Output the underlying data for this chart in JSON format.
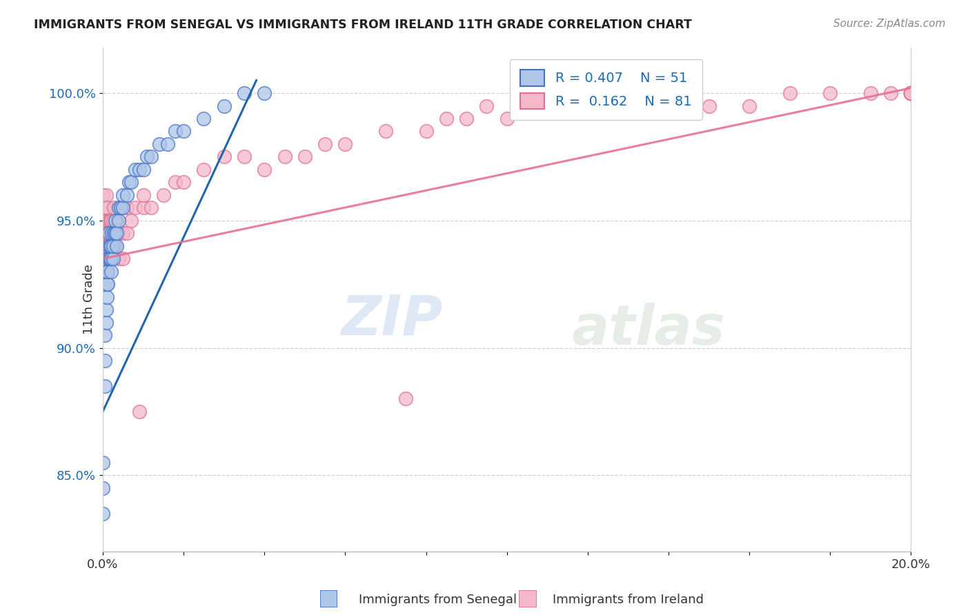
{
  "title": "IMMIGRANTS FROM SENEGAL VS IMMIGRANTS FROM IRELAND 11TH GRADE CORRELATION CHART",
  "source": "Source: ZipAtlas.com",
  "ylabel": "11th Grade",
  "x_min": 0.0,
  "x_max": 20.0,
  "y_min": 82.0,
  "y_max": 101.8,
  "y_ticks": [
    85.0,
    90.0,
    95.0,
    100.0
  ],
  "y_tick_labels": [
    "85.0%",
    "90.0%",
    "95.0%",
    "100.0%"
  ],
  "color_blue": "#aec6e8",
  "color_pink": "#f4b8cb",
  "color_blue_edge": "#4472c4",
  "color_pink_edge": "#e07090",
  "color_blue_line": "#2166ac",
  "color_pink_line": "#e87090",
  "color_title": "#222222",
  "color_source": "#888888",
  "color_legend_text": "#1a6bb5",
  "watermark_zip": "ZIP",
  "watermark_atlas": "atlas",
  "senegal_x": [
    0.0,
    0.0,
    0.0,
    0.05,
    0.05,
    0.05,
    0.08,
    0.08,
    0.1,
    0.1,
    0.1,
    0.12,
    0.12,
    0.12,
    0.15,
    0.15,
    0.15,
    0.18,
    0.18,
    0.2,
    0.2,
    0.2,
    0.22,
    0.25,
    0.25,
    0.28,
    0.3,
    0.3,
    0.35,
    0.35,
    0.4,
    0.4,
    0.45,
    0.5,
    0.5,
    0.6,
    0.65,
    0.7,
    0.8,
    0.9,
    1.0,
    1.1,
    1.2,
    1.4,
    1.6,
    1.8,
    2.0,
    2.5,
    3.0,
    3.5,
    4.0
  ],
  "senegal_y": [
    83.5,
    84.5,
    85.5,
    88.5,
    89.5,
    90.5,
    91.0,
    91.5,
    92.0,
    92.5,
    93.0,
    92.5,
    93.0,
    93.5,
    93.5,
    94.0,
    94.5,
    93.5,
    94.0,
    93.0,
    93.5,
    94.0,
    94.5,
    93.5,
    94.0,
    94.5,
    94.5,
    95.0,
    94.0,
    94.5,
    95.0,
    95.5,
    95.5,
    95.5,
    96.0,
    96.0,
    96.5,
    96.5,
    97.0,
    97.0,
    97.0,
    97.5,
    97.5,
    98.0,
    98.0,
    98.5,
    98.5,
    99.0,
    99.5,
    100.0,
    100.0
  ],
  "ireland_x": [
    0.0,
    0.0,
    0.0,
    0.0,
    0.0,
    0.05,
    0.05,
    0.05,
    0.08,
    0.08,
    0.1,
    0.1,
    0.1,
    0.12,
    0.12,
    0.15,
    0.15,
    0.15,
    0.18,
    0.18,
    0.2,
    0.2,
    0.22,
    0.22,
    0.25,
    0.25,
    0.28,
    0.3,
    0.3,
    0.35,
    0.35,
    0.4,
    0.4,
    0.45,
    0.5,
    0.5,
    0.6,
    0.6,
    0.7,
    0.8,
    0.9,
    1.0,
    1.0,
    1.2,
    1.5,
    1.8,
    2.0,
    2.5,
    3.0,
    3.5,
    4.0,
    4.5,
    5.0,
    5.5,
    6.0,
    7.0,
    7.5,
    8.0,
    8.5,
    9.0,
    9.5,
    10.0,
    11.0,
    12.0,
    13.0,
    14.0,
    15.0,
    16.0,
    17.0,
    18.0,
    19.0,
    19.5,
    20.0,
    20.0,
    20.0,
    20.0,
    20.0,
    20.0,
    20.0,
    20.0,
    20.0
  ],
  "ireland_y": [
    93.5,
    94.0,
    94.5,
    95.0,
    96.0,
    94.0,
    94.5,
    95.5,
    95.0,
    96.0,
    94.5,
    95.0,
    95.5,
    94.0,
    95.0,
    94.0,
    94.5,
    95.0,
    94.5,
    95.0,
    94.5,
    95.0,
    93.5,
    94.5,
    94.5,
    95.0,
    95.5,
    94.0,
    94.5,
    94.5,
    95.0,
    93.5,
    94.5,
    95.5,
    93.5,
    94.5,
    94.5,
    95.5,
    95.0,
    95.5,
    87.5,
    95.5,
    96.0,
    95.5,
    96.0,
    96.5,
    96.5,
    97.0,
    97.5,
    97.5,
    97.0,
    97.5,
    97.5,
    98.0,
    98.0,
    98.5,
    88.0,
    98.5,
    99.0,
    99.0,
    99.5,
    99.0,
    99.5,
    99.5,
    99.5,
    99.5,
    99.5,
    99.5,
    100.0,
    100.0,
    100.0,
    100.0,
    100.0,
    100.0,
    100.0,
    100.0,
    100.0,
    100.0,
    100.0,
    100.0,
    100.0
  ],
  "senegal_trendline_x": [
    0.0,
    3.8
  ],
  "senegal_trendline_y": [
    87.5,
    100.5
  ],
  "ireland_trendline_x": [
    0.0,
    20.0
  ],
  "ireland_trendline_y": [
    93.5,
    100.2
  ]
}
